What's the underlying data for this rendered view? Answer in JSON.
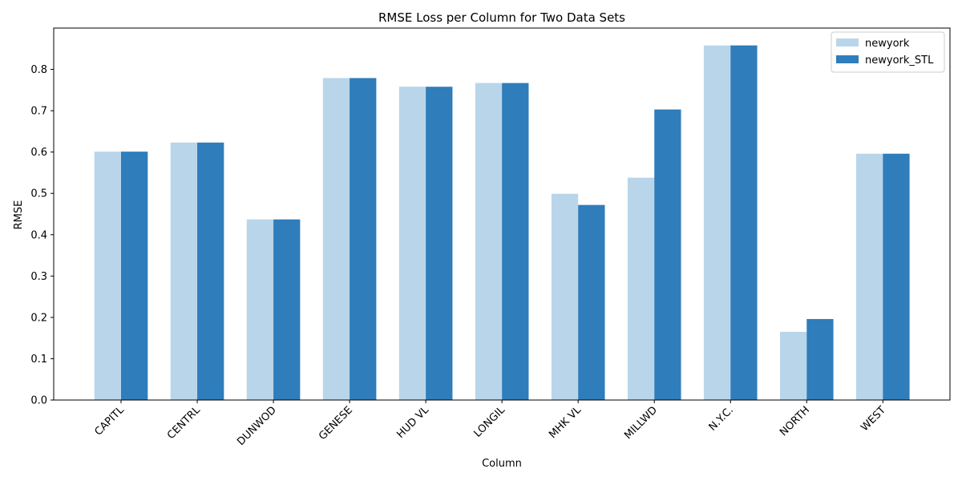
{
  "chart_data": {
    "type": "bar",
    "title": "RMSE Loss per Column for Two Data Sets",
    "xlabel": "Column",
    "ylabel": "RMSE",
    "ylim": [
      0,
      0.9
    ],
    "yticks": [
      "0.0",
      "0.1",
      "0.2",
      "0.3",
      "0.4",
      "0.5",
      "0.6",
      "0.7",
      "0.8"
    ],
    "grid": false,
    "legend_position": "top-right",
    "categories": [
      "CAPITL",
      "CENTRL",
      "DUNWOD",
      "GENESE",
      "HUD VL",
      "LONGIL",
      "MHK VL",
      "MILLWD",
      "N.Y.C.",
      "NORTH",
      "WEST"
    ],
    "series": [
      {
        "name": "newyork",
        "color": "#b9d5ea",
        "values": [
          0.601,
          0.623,
          0.437,
          0.779,
          0.758,
          0.767,
          0.499,
          0.538,
          0.858,
          0.165,
          0.596
        ]
      },
      {
        "name": "newyork_STL",
        "color": "#2f7dbb",
        "values": [
          0.601,
          0.623,
          0.437,
          0.779,
          0.758,
          0.767,
          0.472,
          0.703,
          0.858,
          0.196,
          0.596
        ]
      }
    ]
  }
}
